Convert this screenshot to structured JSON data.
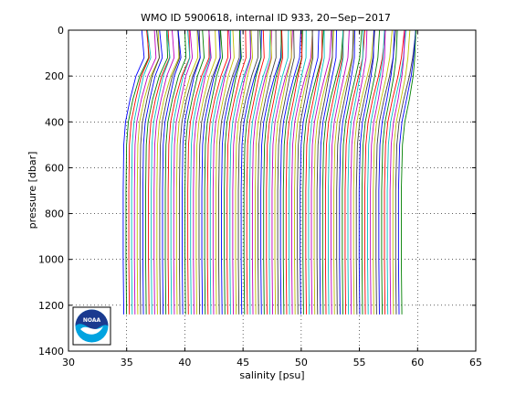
{
  "chart_data": {
    "type": "line",
    "title": "WMO ID 5900618, internal ID 933, 20−Sep−2017",
    "xlabel": "salinity [psu]",
    "ylabel": "pressure [dbar]",
    "xlim": [
      30,
      65
    ],
    "ylim": [
      0,
      1400
    ],
    "y_reversed": true,
    "x_ticks": [
      "30",
      "35",
      "40",
      "45",
      "50",
      "55",
      "60",
      "65"
    ],
    "y_ticks": [
      "0",
      "200",
      "400",
      "600",
      "800",
      "1000",
      "1200",
      "1400"
    ],
    "grid": true,
    "grid_style": "dotted",
    "series": [
      {
        "note": "stacked profiles, each offset along the salinity axis",
        "pressure": [
          0,
          120,
          200,
          300,
          400,
          500,
          700,
          1000,
          1240
        ],
        "first_profile": [
          36.3,
          36.5,
          35.8,
          35.3,
          34.9,
          34.75,
          34.7,
          34.7,
          34.75
        ],
        "last_profile": [
          60.1,
          59.9,
          59.7,
          59.3,
          58.9,
          58.7,
          58.6,
          58.6,
          58.65
        ],
        "count": 100
      }
    ],
    "colors": [
      "#0000ff",
      "#008000",
      "#ff0000",
      "#00bfbf",
      "#bf00bf",
      "#bfbf00",
      "#404040"
    ]
  },
  "logo": {
    "text": "NOAA",
    "colors": {
      "navy": "#1a3a8f",
      "sky": "#00a3e0",
      "white": "#ffffff"
    }
  }
}
